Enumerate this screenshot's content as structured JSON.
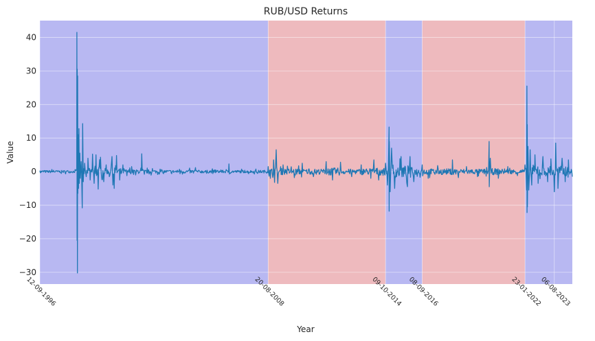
{
  "chart_data": {
    "type": "line",
    "title": "RUB/USD Returns",
    "xlabel": "Year",
    "ylabel": "Value",
    "xlim": [
      "1996-09-12",
      "2024-07-15"
    ],
    "ylim": [
      -33.5,
      45
    ],
    "yticks": [
      -30,
      -20,
      -10,
      0,
      10,
      20,
      30,
      40
    ],
    "grid": true,
    "xtick_dates": [
      "1996-09-12",
      "2008-08-20",
      "2014-10-09",
      "2016-09-08",
      "2022-01-23",
      "2023-08-06"
    ],
    "xtick_labels": [
      "12-09-1996",
      "20-08-2008",
      "09-10-2014",
      "08-09-2016",
      "23-01-2022",
      "06-08-2023"
    ],
    "regimes": [
      {
        "start": "1996-09-12",
        "end": "2008-08-20",
        "regime": "low-volatility",
        "color": "#b8b8f2"
      },
      {
        "start": "2008-08-20",
        "end": "2014-10-09",
        "regime": "high-volatility",
        "color": "#eebabe"
      },
      {
        "start": "2014-10-09",
        "end": "2016-09-08",
        "regime": "low-volatility",
        "color": "#b8b8f2"
      },
      {
        "start": "2016-09-08",
        "end": "2022-01-23",
        "regime": "high-volatility",
        "color": "#eebabe"
      },
      {
        "start": "2022-01-23",
        "end": "2024-07-15",
        "regime": "low-volatility",
        "color": "#b8b8f2"
      }
    ],
    "series": [
      {
        "color": "#1f77b4",
        "points": [
          [
            "1996-09-12",
            0.3
          ],
          [
            "1997-06-01",
            0.4
          ],
          [
            "1998-03-01",
            0.3
          ],
          [
            "1998-08-17",
            0.8
          ],
          [
            "1998-08-20",
            41.5
          ],
          [
            "1998-08-24",
            -20.5
          ],
          [
            "1998-08-27",
            30.5
          ],
          [
            "1998-08-31",
            -30.2
          ],
          [
            "1998-09-04",
            28.5
          ],
          [
            "1998-09-08",
            -6.5
          ],
          [
            "1998-09-14",
            11.0
          ],
          [
            "1998-09-20",
            -5.0
          ],
          [
            "1998-09-28",
            12.8
          ],
          [
            "1998-10-05",
            -3.5
          ],
          [
            "1998-10-15",
            5.5
          ],
          [
            "1998-10-25",
            -2.0
          ],
          [
            "1998-11-10",
            3.0
          ],
          [
            "1998-12-01",
            -10.8
          ],
          [
            "1998-12-08",
            14.3
          ],
          [
            "1998-12-20",
            -3.0
          ],
          [
            "1999-01-15",
            2.5
          ],
          [
            "1999-02-15",
            -1.5
          ],
          [
            "1999-03-20",
            4.0
          ],
          [
            "1999-05-01",
            -2.5
          ],
          [
            "1999-06-15",
            5.2
          ],
          [
            "1999-07-15",
            -3.5
          ],
          [
            "1999-08-20",
            5.0
          ],
          [
            "1999-10-01",
            -5.2
          ],
          [
            "1999-11-15",
            4.3
          ],
          [
            "2000-01-15",
            -3.0
          ],
          [
            "2000-03-01",
            2.0
          ],
          [
            "2000-05-01",
            -1.5
          ],
          [
            "2000-06-20",
            4.5
          ],
          [
            "2000-08-01",
            -5.0
          ],
          [
            "2000-09-15",
            4.8
          ],
          [
            "2000-11-15",
            -2.5
          ],
          [
            "2001-01-15",
            2.0
          ],
          [
            "2001-04-01",
            -1.2
          ],
          [
            "2001-07-01",
            1.5
          ],
          [
            "2001-09-15",
            -1.0
          ],
          [
            "2002-01-10",
            5.3
          ],
          [
            "2002-03-01",
            -0.8
          ],
          [
            "2002-08-01",
            0.9
          ],
          [
            "2003-03-01",
            -0.6
          ],
          [
            "2004-01-01",
            0.7
          ],
          [
            "2004-11-01",
            1.2
          ],
          [
            "2005-06-01",
            -0.5
          ],
          [
            "2006-03-01",
            0.5
          ],
          [
            "2006-08-01",
            2.3
          ],
          [
            "2006-09-01",
            -0.5
          ],
          [
            "2007-06-01",
            0.4
          ],
          [
            "2008-02-01",
            -0.5
          ],
          [
            "2008-08-20",
            1.5
          ],
          [
            "2008-10-01",
            -2.0
          ],
          [
            "2008-12-01",
            3.5
          ],
          [
            "2009-01-20",
            6.5
          ],
          [
            "2009-02-20",
            -3.5
          ],
          [
            "2009-06-01",
            2.0
          ],
          [
            "2010-01-01",
            -1.8
          ],
          [
            "2010-06-01",
            2.5
          ],
          [
            "2011-01-01",
            -1.5
          ],
          [
            "2011-09-01",
            3.0
          ],
          [
            "2012-01-01",
            -2.5
          ],
          [
            "2012-06-01",
            2.8
          ],
          [
            "2013-01-01",
            -1.5
          ],
          [
            "2013-07-01",
            2.0
          ],
          [
            "2014-01-01",
            -2.0
          ],
          [
            "2014-03-01",
            3.5
          ],
          [
            "2014-06-01",
            -2.5
          ],
          [
            "2014-10-09",
            2.5
          ],
          [
            "2014-11-15",
            -4.0
          ],
          [
            "2014-12-16",
            13.3
          ],
          [
            "2014-12-17",
            -11.8
          ],
          [
            "2014-12-20",
            9.0
          ],
          [
            "2015-01-05",
            -6.0
          ],
          [
            "2015-02-01",
            7.0
          ],
          [
            "2015-04-01",
            -5.0
          ],
          [
            "2015-08-01",
            4.5
          ],
          [
            "2015-12-01",
            -4.5
          ],
          [
            "2016-01-20",
            4.5
          ],
          [
            "2016-04-01",
            -3.0
          ],
          [
            "2016-09-08",
            2.0
          ],
          [
            "2017-01-01",
            -2.0
          ],
          [
            "2017-07-01",
            1.8
          ],
          [
            "2018-04-09",
            3.5
          ],
          [
            "2018-08-01",
            -1.8
          ],
          [
            "2019-01-01",
            1.5
          ],
          [
            "2019-08-01",
            -1.5
          ],
          [
            "2020-03-09",
            9.0
          ],
          [
            "2020-03-12",
            -4.5
          ],
          [
            "2020-04-01",
            4.0
          ],
          [
            "2020-09-01",
            -2.0
          ],
          [
            "2021-03-01",
            1.5
          ],
          [
            "2021-09-01",
            -1.2
          ],
          [
            "2022-01-23",
            2.0
          ],
          [
            "2022-02-24",
            -5.5
          ],
          [
            "2022-03-01",
            25.5
          ],
          [
            "2022-03-03",
            -12.2
          ],
          [
            "2022-03-07",
            14.0
          ],
          [
            "2022-03-10",
            -10.5
          ],
          [
            "2022-03-20",
            7.5
          ],
          [
            "2022-04-05",
            -5.5
          ],
          [
            "2022-05-01",
            6.5
          ],
          [
            "2022-06-01",
            -4.0
          ],
          [
            "2022-08-01",
            5.0
          ],
          [
            "2022-10-01",
            -3.5
          ],
          [
            "2023-01-01",
            4.5
          ],
          [
            "2023-04-01",
            -3.0
          ],
          [
            "2023-06-01",
            3.8
          ],
          [
            "2023-08-06",
            -6.0
          ],
          [
            "2023-09-01",
            8.5
          ],
          [
            "2023-10-15",
            -5.0
          ],
          [
            "2024-01-01",
            4.0
          ],
          [
            "2024-03-01",
            -3.0
          ],
          [
            "2024-05-01",
            3.5
          ],
          [
            "2024-07-15",
            -1.5
          ]
        ]
      }
    ]
  }
}
